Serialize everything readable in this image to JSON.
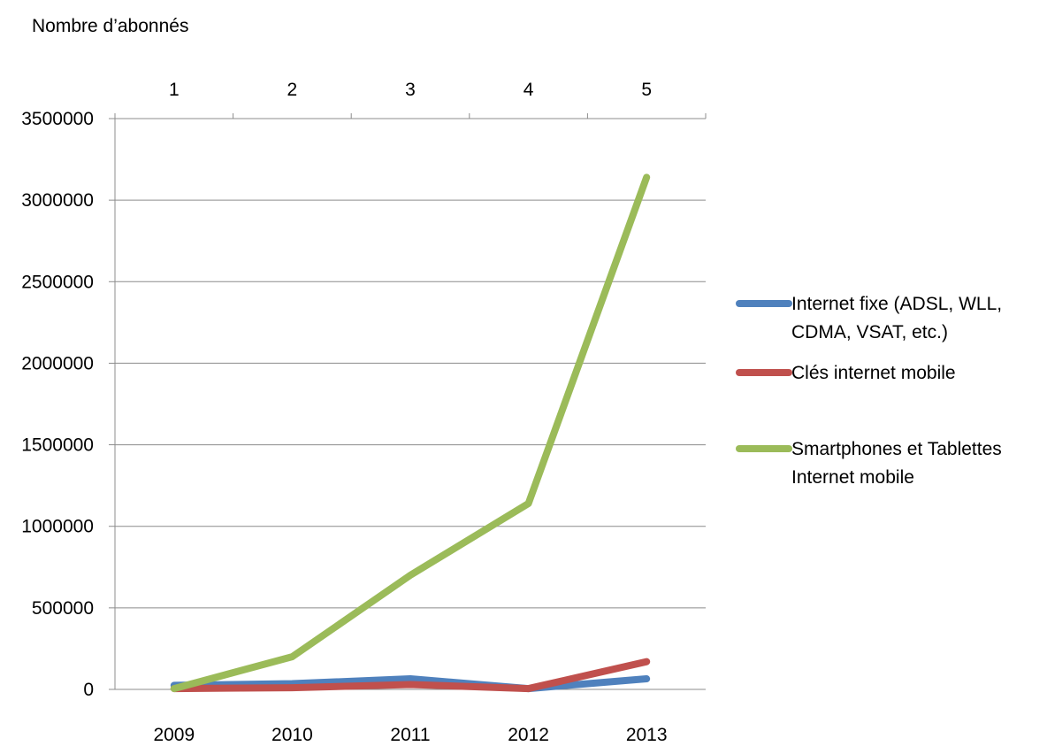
{
  "chart_data": {
    "type": "line",
    "title": "Nombre d’abonnés",
    "ylabel": "",
    "xlabel": "",
    "ylim": [
      0,
      3500000
    ],
    "yticks": [
      "0",
      "500000",
      "1000000",
      "1500000",
      "2000000",
      "2500000",
      "3000000",
      "3500000"
    ],
    "top_categories": [
      "1",
      "2",
      "3",
      "4",
      "5"
    ],
    "x_year_labels": [
      "2009",
      "2010",
      "2011",
      "2012",
      "2013"
    ],
    "grid": true,
    "legend_position": "right",
    "series": [
      {
        "name_lines": [
          "Internet fixe (ADSL, WLL,",
          "CDMA, VSAT,  etc.)"
        ],
        "color": "#4F81BD",
        "values": [
          25000,
          35000,
          65000,
          5000,
          65000
        ]
      },
      {
        "name_lines": [
          "Clés internet mobile"
        ],
        "color": "#C0504D",
        "values": [
          5000,
          10000,
          30000,
          5000,
          170000
        ]
      },
      {
        "name_lines": [
          "Smartphones et Tablettes",
          "Internet mobile"
        ],
        "color": "#9BBB59",
        "values": [
          5000,
          200000,
          700000,
          1140000,
          3140000
        ]
      }
    ]
  }
}
